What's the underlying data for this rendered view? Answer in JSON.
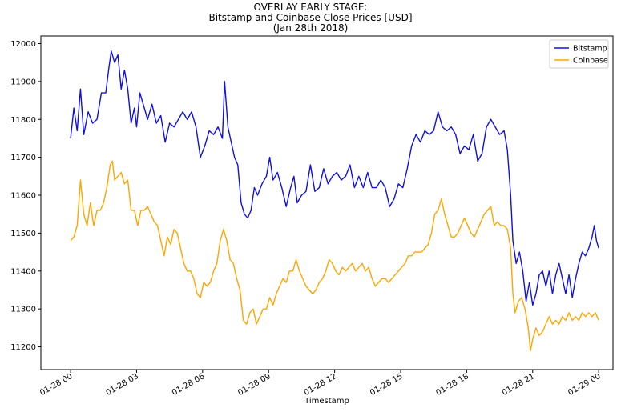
{
  "chart_data": {
    "type": "line",
    "title_lines": [
      "OVERLAY EARLY STAGE:",
      "Bitstamp and Coinbase Close Prices [USD]",
      "(Jan 28th 2018)"
    ],
    "xlabel": "Timestamp",
    "ylabel": "",
    "x_range_hours": [
      0,
      24
    ],
    "xlim_hours": [
      -1.35,
      24.65
    ],
    "x_ticks": [
      {
        "hour": 0,
        "label": "01-28 00"
      },
      {
        "hour": 3,
        "label": "01-28 03"
      },
      {
        "hour": 6,
        "label": "01-28 06"
      },
      {
        "hour": 9,
        "label": "01-28 09"
      },
      {
        "hour": 12,
        "label": "01-28 12"
      },
      {
        "hour": 15,
        "label": "01-28 15"
      },
      {
        "hour": 18,
        "label": "01-28 18"
      },
      {
        "hour": 21,
        "label": "01-28 21"
      },
      {
        "hour": 24,
        "label": "01-29 00"
      }
    ],
    "ylim": [
      11140,
      12020
    ],
    "y_ticks": [
      11200,
      11300,
      11400,
      11500,
      11600,
      11700,
      11800,
      11900,
      12000
    ],
    "grid": false,
    "legend_position": "upper right",
    "series": [
      {
        "name": "Bitstamp",
        "color": "#1010e0",
        "points": [
          [
            0.0,
            11750
          ],
          [
            0.15,
            11830
          ],
          [
            0.3,
            11770
          ],
          [
            0.45,
            11880
          ],
          [
            0.6,
            11760
          ],
          [
            0.8,
            11820
          ],
          [
            1.0,
            11790
          ],
          [
            1.2,
            11800
          ],
          [
            1.4,
            11870
          ],
          [
            1.6,
            11870
          ],
          [
            1.75,
            11940
          ],
          [
            1.85,
            11980
          ],
          [
            2.0,
            11950
          ],
          [
            2.15,
            11970
          ],
          [
            2.3,
            11880
          ],
          [
            2.45,
            11930
          ],
          [
            2.6,
            11880
          ],
          [
            2.75,
            11790
          ],
          [
            2.9,
            11830
          ],
          [
            3.0,
            11780
          ],
          [
            3.15,
            11870
          ],
          [
            3.3,
            11840
          ],
          [
            3.5,
            11800
          ],
          [
            3.7,
            11840
          ],
          [
            3.9,
            11790
          ],
          [
            4.1,
            11810
          ],
          [
            4.3,
            11740
          ],
          [
            4.5,
            11790
          ],
          [
            4.7,
            11780
          ],
          [
            4.9,
            11800
          ],
          [
            5.1,
            11820
          ],
          [
            5.3,
            11800
          ],
          [
            5.5,
            11820
          ],
          [
            5.7,
            11780
          ],
          [
            5.9,
            11700
          ],
          [
            6.1,
            11730
          ],
          [
            6.3,
            11770
          ],
          [
            6.5,
            11760
          ],
          [
            6.7,
            11780
          ],
          [
            6.9,
            11750
          ],
          [
            7.0,
            11900
          ],
          [
            7.15,
            11780
          ],
          [
            7.3,
            11740
          ],
          [
            7.45,
            11700
          ],
          [
            7.6,
            11680
          ],
          [
            7.75,
            11580
          ],
          [
            7.9,
            11550
          ],
          [
            8.05,
            11540
          ],
          [
            8.2,
            11560
          ],
          [
            8.35,
            11620
          ],
          [
            8.5,
            11600
          ],
          [
            8.7,
            11630
          ],
          [
            8.9,
            11650
          ],
          [
            9.05,
            11700
          ],
          [
            9.2,
            11640
          ],
          [
            9.4,
            11660
          ],
          [
            9.6,
            11620
          ],
          [
            9.8,
            11570
          ],
          [
            10.0,
            11620
          ],
          [
            10.15,
            11650
          ],
          [
            10.3,
            11580
          ],
          [
            10.5,
            11600
          ],
          [
            10.7,
            11610
          ],
          [
            10.9,
            11680
          ],
          [
            11.1,
            11610
          ],
          [
            11.3,
            11620
          ],
          [
            11.5,
            11670
          ],
          [
            11.7,
            11630
          ],
          [
            11.9,
            11650
          ],
          [
            12.1,
            11660
          ],
          [
            12.3,
            11640
          ],
          [
            12.5,
            11650
          ],
          [
            12.7,
            11680
          ],
          [
            12.9,
            11620
          ],
          [
            13.1,
            11650
          ],
          [
            13.3,
            11620
          ],
          [
            13.5,
            11660
          ],
          [
            13.7,
            11620
          ],
          [
            13.9,
            11620
          ],
          [
            14.1,
            11640
          ],
          [
            14.3,
            11620
          ],
          [
            14.5,
            11570
          ],
          [
            14.7,
            11590
          ],
          [
            14.9,
            11630
          ],
          [
            15.1,
            11620
          ],
          [
            15.3,
            11670
          ],
          [
            15.5,
            11730
          ],
          [
            15.7,
            11760
          ],
          [
            15.9,
            11740
          ],
          [
            16.1,
            11770
          ],
          [
            16.3,
            11760
          ],
          [
            16.5,
            11770
          ],
          [
            16.7,
            11820
          ],
          [
            16.9,
            11780
          ],
          [
            17.1,
            11770
          ],
          [
            17.3,
            11780
          ],
          [
            17.5,
            11760
          ],
          [
            17.7,
            11710
          ],
          [
            17.9,
            11730
          ],
          [
            18.1,
            11720
          ],
          [
            18.3,
            11760
          ],
          [
            18.5,
            11690
          ],
          [
            18.7,
            11710
          ],
          [
            18.9,
            11780
          ],
          [
            19.1,
            11800
          ],
          [
            19.3,
            11780
          ],
          [
            19.5,
            11760
          ],
          [
            19.7,
            11770
          ],
          [
            19.85,
            11720
          ],
          [
            20.0,
            11600
          ],
          [
            20.1,
            11480
          ],
          [
            20.25,
            11420
          ],
          [
            20.4,
            11450
          ],
          [
            20.55,
            11400
          ],
          [
            20.7,
            11320
          ],
          [
            20.85,
            11370
          ],
          [
            21.0,
            11310
          ],
          [
            21.15,
            11340
          ],
          [
            21.3,
            11390
          ],
          [
            21.45,
            11400
          ],
          [
            21.6,
            11360
          ],
          [
            21.75,
            11400
          ],
          [
            21.9,
            11340
          ],
          [
            22.05,
            11390
          ],
          [
            22.2,
            11420
          ],
          [
            22.35,
            11380
          ],
          [
            22.5,
            11340
          ],
          [
            22.65,
            11390
          ],
          [
            22.8,
            11330
          ],
          [
            22.95,
            11380
          ],
          [
            23.1,
            11420
          ],
          [
            23.25,
            11450
          ],
          [
            23.4,
            11440
          ],
          [
            23.55,
            11460
          ],
          [
            23.7,
            11490
          ],
          [
            23.8,
            11520
          ],
          [
            23.9,
            11480
          ],
          [
            24.0,
            11460
          ]
        ]
      },
      {
        "name": "Coinbase",
        "color": "#ffa500",
        "points": [
          [
            0.0,
            11480
          ],
          [
            0.15,
            11490
          ],
          [
            0.3,
            11520
          ],
          [
            0.45,
            11640
          ],
          [
            0.6,
            11550
          ],
          [
            0.75,
            11520
          ],
          [
            0.9,
            11580
          ],
          [
            1.05,
            11520
          ],
          [
            1.2,
            11560
          ],
          [
            1.35,
            11560
          ],
          [
            1.5,
            11580
          ],
          [
            1.65,
            11620
          ],
          [
            1.8,
            11680
          ],
          [
            1.9,
            11690
          ],
          [
            2.0,
            11640
          ],
          [
            2.15,
            11650
          ],
          [
            2.3,
            11660
          ],
          [
            2.45,
            11630
          ],
          [
            2.6,
            11640
          ],
          [
            2.75,
            11560
          ],
          [
            2.9,
            11560
          ],
          [
            3.05,
            11520
          ],
          [
            3.2,
            11560
          ],
          [
            3.35,
            11560
          ],
          [
            3.5,
            11570
          ],
          [
            3.65,
            11550
          ],
          [
            3.8,
            11530
          ],
          [
            3.95,
            11520
          ],
          [
            4.1,
            11480
          ],
          [
            4.25,
            11440
          ],
          [
            4.4,
            11490
          ],
          [
            4.55,
            11470
          ],
          [
            4.7,
            11510
          ],
          [
            4.85,
            11500
          ],
          [
            5.0,
            11460
          ],
          [
            5.15,
            11420
          ],
          [
            5.3,
            11400
          ],
          [
            5.45,
            11400
          ],
          [
            5.6,
            11380
          ],
          [
            5.75,
            11340
          ],
          [
            5.9,
            11330
          ],
          [
            6.05,
            11370
          ],
          [
            6.2,
            11360
          ],
          [
            6.35,
            11370
          ],
          [
            6.5,
            11400
          ],
          [
            6.65,
            11420
          ],
          [
            6.8,
            11480
          ],
          [
            6.95,
            11510
          ],
          [
            7.1,
            11480
          ],
          [
            7.25,
            11430
          ],
          [
            7.4,
            11420
          ],
          [
            7.55,
            11380
          ],
          [
            7.7,
            11350
          ],
          [
            7.85,
            11270
          ],
          [
            8.0,
            11260
          ],
          [
            8.15,
            11290
          ],
          [
            8.3,
            11300
          ],
          [
            8.45,
            11260
          ],
          [
            8.6,
            11280
          ],
          [
            8.75,
            11300
          ],
          [
            8.9,
            11300
          ],
          [
            9.05,
            11330
          ],
          [
            9.2,
            11310
          ],
          [
            9.35,
            11340
          ],
          [
            9.5,
            11360
          ],
          [
            9.65,
            11380
          ],
          [
            9.8,
            11370
          ],
          [
            9.95,
            11400
          ],
          [
            10.1,
            11400
          ],
          [
            10.25,
            11430
          ],
          [
            10.4,
            11400
          ],
          [
            10.55,
            11380
          ],
          [
            10.7,
            11360
          ],
          [
            10.85,
            11350
          ],
          [
            11.0,
            11340
          ],
          [
            11.15,
            11350
          ],
          [
            11.3,
            11370
          ],
          [
            11.45,
            11380
          ],
          [
            11.6,
            11400
          ],
          [
            11.75,
            11430
          ],
          [
            11.9,
            11420
          ],
          [
            12.05,
            11400
          ],
          [
            12.2,
            11390
          ],
          [
            12.35,
            11410
          ],
          [
            12.5,
            11400
          ],
          [
            12.65,
            11410
          ],
          [
            12.8,
            11420
          ],
          [
            12.95,
            11400
          ],
          [
            13.1,
            11410
          ],
          [
            13.25,
            11420
          ],
          [
            13.4,
            11400
          ],
          [
            13.55,
            11410
          ],
          [
            13.7,
            11380
          ],
          [
            13.85,
            11360
          ],
          [
            14.0,
            11370
          ],
          [
            14.15,
            11380
          ],
          [
            14.3,
            11380
          ],
          [
            14.45,
            11370
          ],
          [
            14.6,
            11380
          ],
          [
            14.75,
            11390
          ],
          [
            14.9,
            11400
          ],
          [
            15.05,
            11410
          ],
          [
            15.2,
            11420
          ],
          [
            15.35,
            11440
          ],
          [
            15.5,
            11440
          ],
          [
            15.65,
            11450
          ],
          [
            15.8,
            11450
          ],
          [
            15.95,
            11450
          ],
          [
            16.1,
            11460
          ],
          [
            16.25,
            11470
          ],
          [
            16.4,
            11500
          ],
          [
            16.55,
            11550
          ],
          [
            16.7,
            11560
          ],
          [
            16.85,
            11590
          ],
          [
            17.0,
            11550
          ],
          [
            17.15,
            11520
          ],
          [
            17.3,
            11490
          ],
          [
            17.45,
            11490
          ],
          [
            17.6,
            11500
          ],
          [
            17.75,
            11520
          ],
          [
            17.9,
            11540
          ],
          [
            18.05,
            11520
          ],
          [
            18.2,
            11500
          ],
          [
            18.35,
            11490
          ],
          [
            18.5,
            11510
          ],
          [
            18.65,
            11530
          ],
          [
            18.8,
            11550
          ],
          [
            18.95,
            11560
          ],
          [
            19.1,
            11570
          ],
          [
            19.25,
            11520
          ],
          [
            19.4,
            11530
          ],
          [
            19.55,
            11520
          ],
          [
            19.7,
            11520
          ],
          [
            19.85,
            11510
          ],
          [
            20.0,
            11460
          ],
          [
            20.1,
            11340
          ],
          [
            20.2,
            11290
          ],
          [
            20.35,
            11320
          ],
          [
            20.5,
            11330
          ],
          [
            20.65,
            11300
          ],
          [
            20.8,
            11250
          ],
          [
            20.9,
            11190
          ],
          [
            21.0,
            11220
          ],
          [
            21.15,
            11250
          ],
          [
            21.3,
            11230
          ],
          [
            21.45,
            11240
          ],
          [
            21.6,
            11260
          ],
          [
            21.75,
            11280
          ],
          [
            21.9,
            11260
          ],
          [
            22.05,
            11270
          ],
          [
            22.2,
            11260
          ],
          [
            22.35,
            11280
          ],
          [
            22.5,
            11270
          ],
          [
            22.65,
            11290
          ],
          [
            22.8,
            11270
          ],
          [
            22.95,
            11280
          ],
          [
            23.1,
            11270
          ],
          [
            23.25,
            11290
          ],
          [
            23.4,
            11280
          ],
          [
            23.55,
            11290
          ],
          [
            23.7,
            11280
          ],
          [
            23.85,
            11290
          ],
          [
            24.0,
            11270
          ]
        ]
      }
    ]
  }
}
